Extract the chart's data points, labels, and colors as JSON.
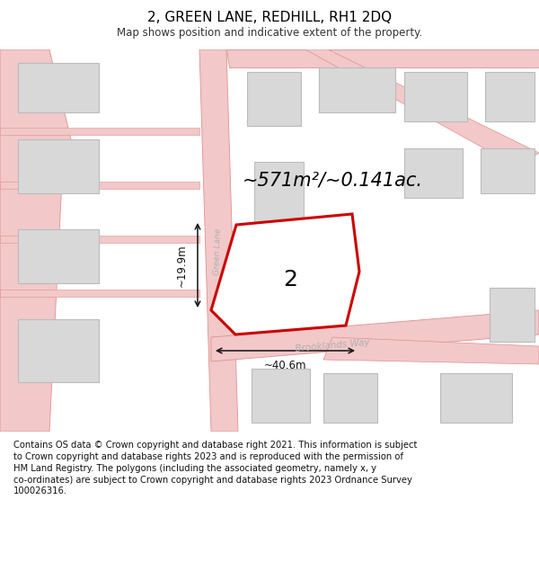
{
  "title": "2, GREEN LANE, REDHILL, RH1 2DQ",
  "subtitle": "Map shows position and indicative extent of the property.",
  "footer_line1": "Contains OS data © Crown copyright and database right 2021. This information is subject",
  "footer_line2": "to Crown copyright and database rights 2023 and is reproduced with the permission of",
  "footer_line3": "HM Land Registry. The polygons (including the associated geometry, namely x, y",
  "footer_line4": "co-ordinates) are subject to Crown copyright and database rights 2023 Ordnance Survey",
  "footer_line5": "100026316.",
  "area_text": "~571m²/~0.141ac.",
  "width_text": "~40.6m",
  "height_text": "~19.9m",
  "road_label_green": "Green Lane",
  "road_label_brook": "Brooklands Way",
  "plot_number": "2",
  "map_bg": "#ffffff",
  "road_fill": "#f2c8c8",
  "road_edge": "#e09090",
  "bld_fill": "#d8d8d8",
  "bld_edge": "#bbbbbb",
  "plot_fill": "#ffffff",
  "plot_stroke": "#cc0000",
  "plot_lw": 2.2,
  "dim_color": "#111111",
  "label_color": "#b0b0b0",
  "text_color": "#111111",
  "title_fontsize": 11,
  "subtitle_fontsize": 8.5,
  "footer_fontsize": 7.2,
  "area_fontsize": 15
}
